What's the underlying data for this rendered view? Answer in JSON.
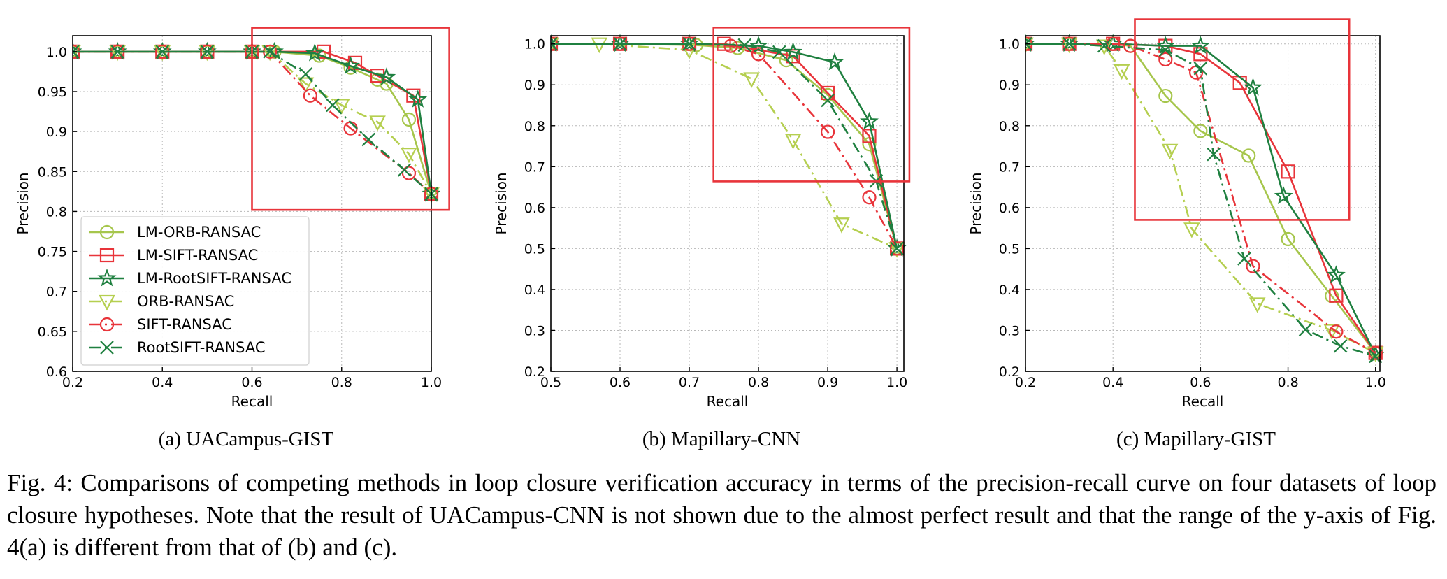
{
  "styles": {
    "LM-ORB-RANSAC": {
      "color": "#a6c64c",
      "dash": "solid",
      "marker": "circle"
    },
    "LM-SIFT-RANSAC": {
      "color": "#e8343a",
      "dash": "solid",
      "marker": "square"
    },
    "LM-RootSIFT-RANSAC": {
      "color": "#1f8040",
      "dash": "solid",
      "marker": "star"
    },
    "ORB-RANSAC": {
      "color": "#b5cf50",
      "dash": "dashdot",
      "marker": "triangle-down"
    },
    "SIFT-RANSAC": {
      "color": "#e8343a",
      "dash": "dashdot",
      "marker": "circle"
    },
    "RootSIFT-RANSAC": {
      "color": "#1f8040",
      "dash": "dashdot",
      "marker": "x"
    },
    "highlight_box": "#e8343a"
  },
  "chart_data": [
    {
      "type": "line",
      "subcaption": "(a) UACampus-GIST",
      "xlabel": "Recall",
      "ylabel": "Precision",
      "xlim": [
        0.2,
        1.0
      ],
      "ylim": [
        0.6,
        1.02
      ],
      "xticks": [
        0.2,
        0.4,
        0.6,
        0.8,
        1.0
      ],
      "xtick_labels": [
        "0.2",
        "0.4",
        "0.6",
        "0.8",
        "1.0"
      ],
      "yticks": [
        0.6,
        0.65,
        0.7,
        0.75,
        0.8,
        0.85,
        0.9,
        0.95,
        1.0
      ],
      "ytick_labels": [
        "0.6",
        "0.65",
        "0.7",
        "0.75",
        "0.8",
        "0.85",
        "0.9",
        "0.95",
        "1.0"
      ],
      "grid": true,
      "legend_position": "bottom-left",
      "highlight_box": {
        "x": [
          0.6,
          1.04
        ],
        "y": [
          0.802,
          1.03
        ]
      },
      "series": [
        {
          "name": "LM-ORB-RANSAC",
          "x": [
            0.2,
            0.3,
            0.4,
            0.5,
            0.6,
            0.65,
            0.75,
            0.82,
            0.88,
            0.9,
            0.95,
            1.0
          ],
          "y": [
            1.0,
            1.0,
            1.0,
            1.0,
            1.0,
            1.0,
            0.995,
            0.98,
            0.965,
            0.96,
            0.915,
            0.822
          ]
        },
        {
          "name": "LM-SIFT-RANSAC",
          "x": [
            0.2,
            0.3,
            0.4,
            0.5,
            0.6,
            0.76,
            0.83,
            0.88,
            0.96,
            1.0
          ],
          "y": [
            1.0,
            1.0,
            1.0,
            1.0,
            1.0,
            1.0,
            0.986,
            0.97,
            0.945,
            0.822
          ]
        },
        {
          "name": "LM-RootSIFT-RANSAC",
          "x": [
            0.2,
            0.3,
            0.4,
            0.5,
            0.6,
            0.65,
            0.74,
            0.82,
            0.9,
            0.97,
            1.0
          ],
          "y": [
            1.0,
            1.0,
            1.0,
            1.0,
            1.0,
            1.0,
            0.998,
            0.982,
            0.968,
            0.94,
            0.822
          ]
        },
        {
          "name": "ORB-RANSAC",
          "x": [
            0.2,
            0.3,
            0.4,
            0.5,
            0.6,
            0.64,
            0.72,
            0.8,
            0.88,
            0.95,
            1.0
          ],
          "y": [
            1.0,
            1.0,
            1.0,
            1.0,
            1.0,
            1.0,
            0.96,
            0.933,
            0.912,
            0.872,
            0.822
          ]
        },
        {
          "name": "SIFT-RANSAC",
          "x": [
            0.2,
            0.3,
            0.4,
            0.5,
            0.6,
            0.64,
            0.73,
            0.82,
            0.95,
            1.0
          ],
          "y": [
            1.0,
            1.0,
            1.0,
            1.0,
            1.0,
            1.0,
            0.945,
            0.904,
            0.848,
            0.822
          ]
        },
        {
          "name": "RootSIFT-RANSAC",
          "x": [
            0.2,
            0.3,
            0.4,
            0.5,
            0.6,
            0.64,
            0.72,
            0.78,
            0.86,
            0.94,
            1.0
          ],
          "y": [
            1.0,
            1.0,
            1.0,
            1.0,
            1.0,
            1.0,
            0.972,
            0.933,
            0.89,
            0.852,
            0.822
          ]
        }
      ]
    },
    {
      "type": "line",
      "subcaption": "(b) Mapillary-CNN",
      "xlabel": "Recall",
      "ylabel": "Precision",
      "xlim": [
        0.5,
        1.01
      ],
      "ylim": [
        0.2,
        1.02
      ],
      "xticks": [
        0.5,
        0.6,
        0.7,
        0.8,
        0.9,
        1.0
      ],
      "xtick_labels": [
        "0.5",
        "0.6",
        "0.7",
        "0.8",
        "0.9",
        "1.0"
      ],
      "yticks": [
        0.2,
        0.3,
        0.4,
        0.5,
        0.6,
        0.7,
        0.8,
        0.9,
        1.0
      ],
      "ytick_labels": [
        "0.2",
        "0.3",
        "0.4",
        "0.5",
        "0.6",
        "0.7",
        "0.8",
        "0.9",
        "1.0"
      ],
      "grid": true,
      "highlight_box": {
        "x": [
          0.735,
          1.018
        ],
        "y": [
          0.664,
          1.04
        ]
      },
      "series": [
        {
          "name": "LM-ORB-RANSAC",
          "x": [
            0.5,
            0.6,
            0.71,
            0.77,
            0.84,
            0.9,
            0.96,
            1.0
          ],
          "y": [
            1.0,
            1.0,
            0.997,
            0.99,
            0.96,
            0.875,
            0.755,
            0.5
          ]
        },
        {
          "name": "LM-SIFT-RANSAC",
          "x": [
            0.5,
            0.6,
            0.7,
            0.75,
            0.85,
            0.9,
            0.96,
            1.0
          ],
          "y": [
            1.0,
            1.0,
            1.0,
            1.0,
            0.97,
            0.88,
            0.775,
            0.5
          ]
        },
        {
          "name": "LM-RootSIFT-RANSAC",
          "x": [
            0.5,
            0.6,
            0.7,
            0.8,
            0.85,
            0.91,
            0.96,
            1.0
          ],
          "y": [
            1.0,
            1.0,
            1.0,
            0.995,
            0.98,
            0.955,
            0.81,
            0.5
          ]
        },
        {
          "name": "ORB-RANSAC",
          "x": [
            0.5,
            0.57,
            0.7,
            0.79,
            0.85,
            0.92,
            1.0
          ],
          "y": [
            1.0,
            1.0,
            0.985,
            0.915,
            0.765,
            0.56,
            0.5
          ]
        },
        {
          "name": "SIFT-RANSAC",
          "x": [
            0.5,
            0.6,
            0.7,
            0.76,
            0.8,
            0.9,
            0.96,
            1.0
          ],
          "y": [
            1.0,
            1.0,
            1.0,
            0.995,
            0.975,
            0.785,
            0.625,
            0.5
          ]
        },
        {
          "name": "RootSIFT-RANSAC",
          "x": [
            0.5,
            0.6,
            0.7,
            0.78,
            0.83,
            0.9,
            0.97,
            1.0
          ],
          "y": [
            1.0,
            1.0,
            1.0,
            0.997,
            0.98,
            0.862,
            0.665,
            0.5
          ]
        }
      ]
    },
    {
      "type": "line",
      "subcaption": "(c) Mapillary-GIST",
      "xlabel": "Recall",
      "ylabel": "Precision",
      "xlim": [
        0.2,
        1.01
      ],
      "ylim": [
        0.2,
        1.02
      ],
      "xticks": [
        0.2,
        0.4,
        0.6,
        0.8,
        1.0
      ],
      "xtick_labels": [
        "0.2",
        "0.4",
        "0.6",
        "0.8",
        "1.0"
      ],
      "yticks": [
        0.2,
        0.3,
        0.4,
        0.5,
        0.6,
        0.7,
        0.8,
        0.9,
        1.0
      ],
      "ytick_labels": [
        "0.2",
        "0.3",
        "0.4",
        "0.5",
        "0.6",
        "0.7",
        "0.8",
        "0.9",
        "1.0"
      ],
      "grid": true,
      "highlight_box": {
        "x": [
          0.45,
          0.94
        ],
        "y": [
          0.57,
          1.06
        ]
      },
      "series": [
        {
          "name": "LM-ORB-RANSAC",
          "x": [
            0.2,
            0.3,
            0.4,
            0.44,
            0.52,
            0.6,
            0.71,
            0.8,
            0.9,
            1.0
          ],
          "y": [
            1.0,
            1.0,
            1.0,
            0.995,
            0.873,
            0.787,
            0.727,
            0.523,
            0.384,
            0.245
          ]
        },
        {
          "name": "LM-SIFT-RANSAC",
          "x": [
            0.2,
            0.3,
            0.4,
            0.52,
            0.6,
            0.69,
            0.8,
            0.91,
            1.0
          ],
          "y": [
            1.0,
            1.0,
            1.0,
            0.995,
            0.975,
            0.905,
            0.688,
            0.385,
            0.245
          ]
        },
        {
          "name": "LM-RootSIFT-RANSAC",
          "x": [
            0.2,
            0.3,
            0.4,
            0.52,
            0.6,
            0.72,
            0.79,
            0.91,
            1.0
          ],
          "y": [
            1.0,
            1.0,
            1.0,
            0.995,
            0.995,
            0.893,
            0.628,
            0.435,
            0.24
          ]
        },
        {
          "name": "ORB-RANSAC",
          "x": [
            0.2,
            0.3,
            0.38,
            0.42,
            0.53,
            0.58,
            0.73,
            0.9,
            1.0
          ],
          "y": [
            1.0,
            1.0,
            0.995,
            0.935,
            0.74,
            0.548,
            0.365,
            0.3,
            0.245
          ]
        },
        {
          "name": "SIFT-RANSAC",
          "x": [
            0.2,
            0.3,
            0.4,
            0.44,
            0.52,
            0.59,
            0.72,
            0.91,
            1.0
          ],
          "y": [
            1.0,
            1.0,
            1.0,
            0.995,
            0.962,
            0.93,
            0.457,
            0.297,
            0.245
          ]
        },
        {
          "name": "RootSIFT-RANSAC",
          "x": [
            0.2,
            0.3,
            0.38,
            0.52,
            0.6,
            0.63,
            0.7,
            0.84,
            0.92,
            1.0
          ],
          "y": [
            1.0,
            1.0,
            0.995,
            0.985,
            0.94,
            0.73,
            0.475,
            0.302,
            0.262,
            0.237
          ]
        }
      ]
    }
  ],
  "caption": "Fig. 4: Comparisons of competing methods in loop closure verification accuracy in terms of the precision-recall curve on four datasets of loop closure hypotheses. Note that the result of UACampus-CNN is not shown due to the almost perfect result and that the range of the y-axis of Fig. 4(a) is different from that of (b) and (c)."
}
